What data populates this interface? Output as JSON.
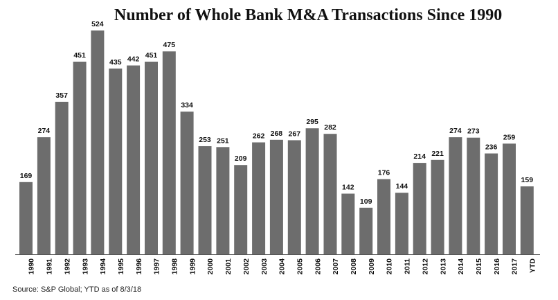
{
  "title": "Number of Whole Bank M&A Transactions Since 1990",
  "source": "Source: S&P Global; YTD as of 8/3/18",
  "colors": {
    "bar": "#6d6d6d",
    "axis": "#555555",
    "text": "#111111"
  },
  "chart_data": {
    "type": "bar",
    "title": "Number of Whole Bank M&A Transactions Since 1990",
    "xlabel": "",
    "ylabel": "",
    "ylim": [
      0,
      524
    ],
    "grid": false,
    "legend": "none",
    "categories": [
      "1990",
      "1991",
      "1992",
      "1993",
      "1994",
      "1995",
      "1996",
      "1997",
      "1998",
      "1999",
      "2000",
      "2001",
      "2002",
      "2003",
      "2004",
      "2005",
      "2006",
      "2007",
      "2008",
      "2009",
      "2010",
      "2011",
      "2012",
      "2013",
      "2014",
      "2015",
      "2016",
      "2017",
      "YTD"
    ],
    "values": [
      169,
      274,
      357,
      451,
      524,
      435,
      442,
      451,
      475,
      334,
      253,
      251,
      209,
      262,
      268,
      267,
      295,
      282,
      142,
      109,
      176,
      144,
      214,
      221,
      274,
      273,
      236,
      259,
      159
    ]
  }
}
